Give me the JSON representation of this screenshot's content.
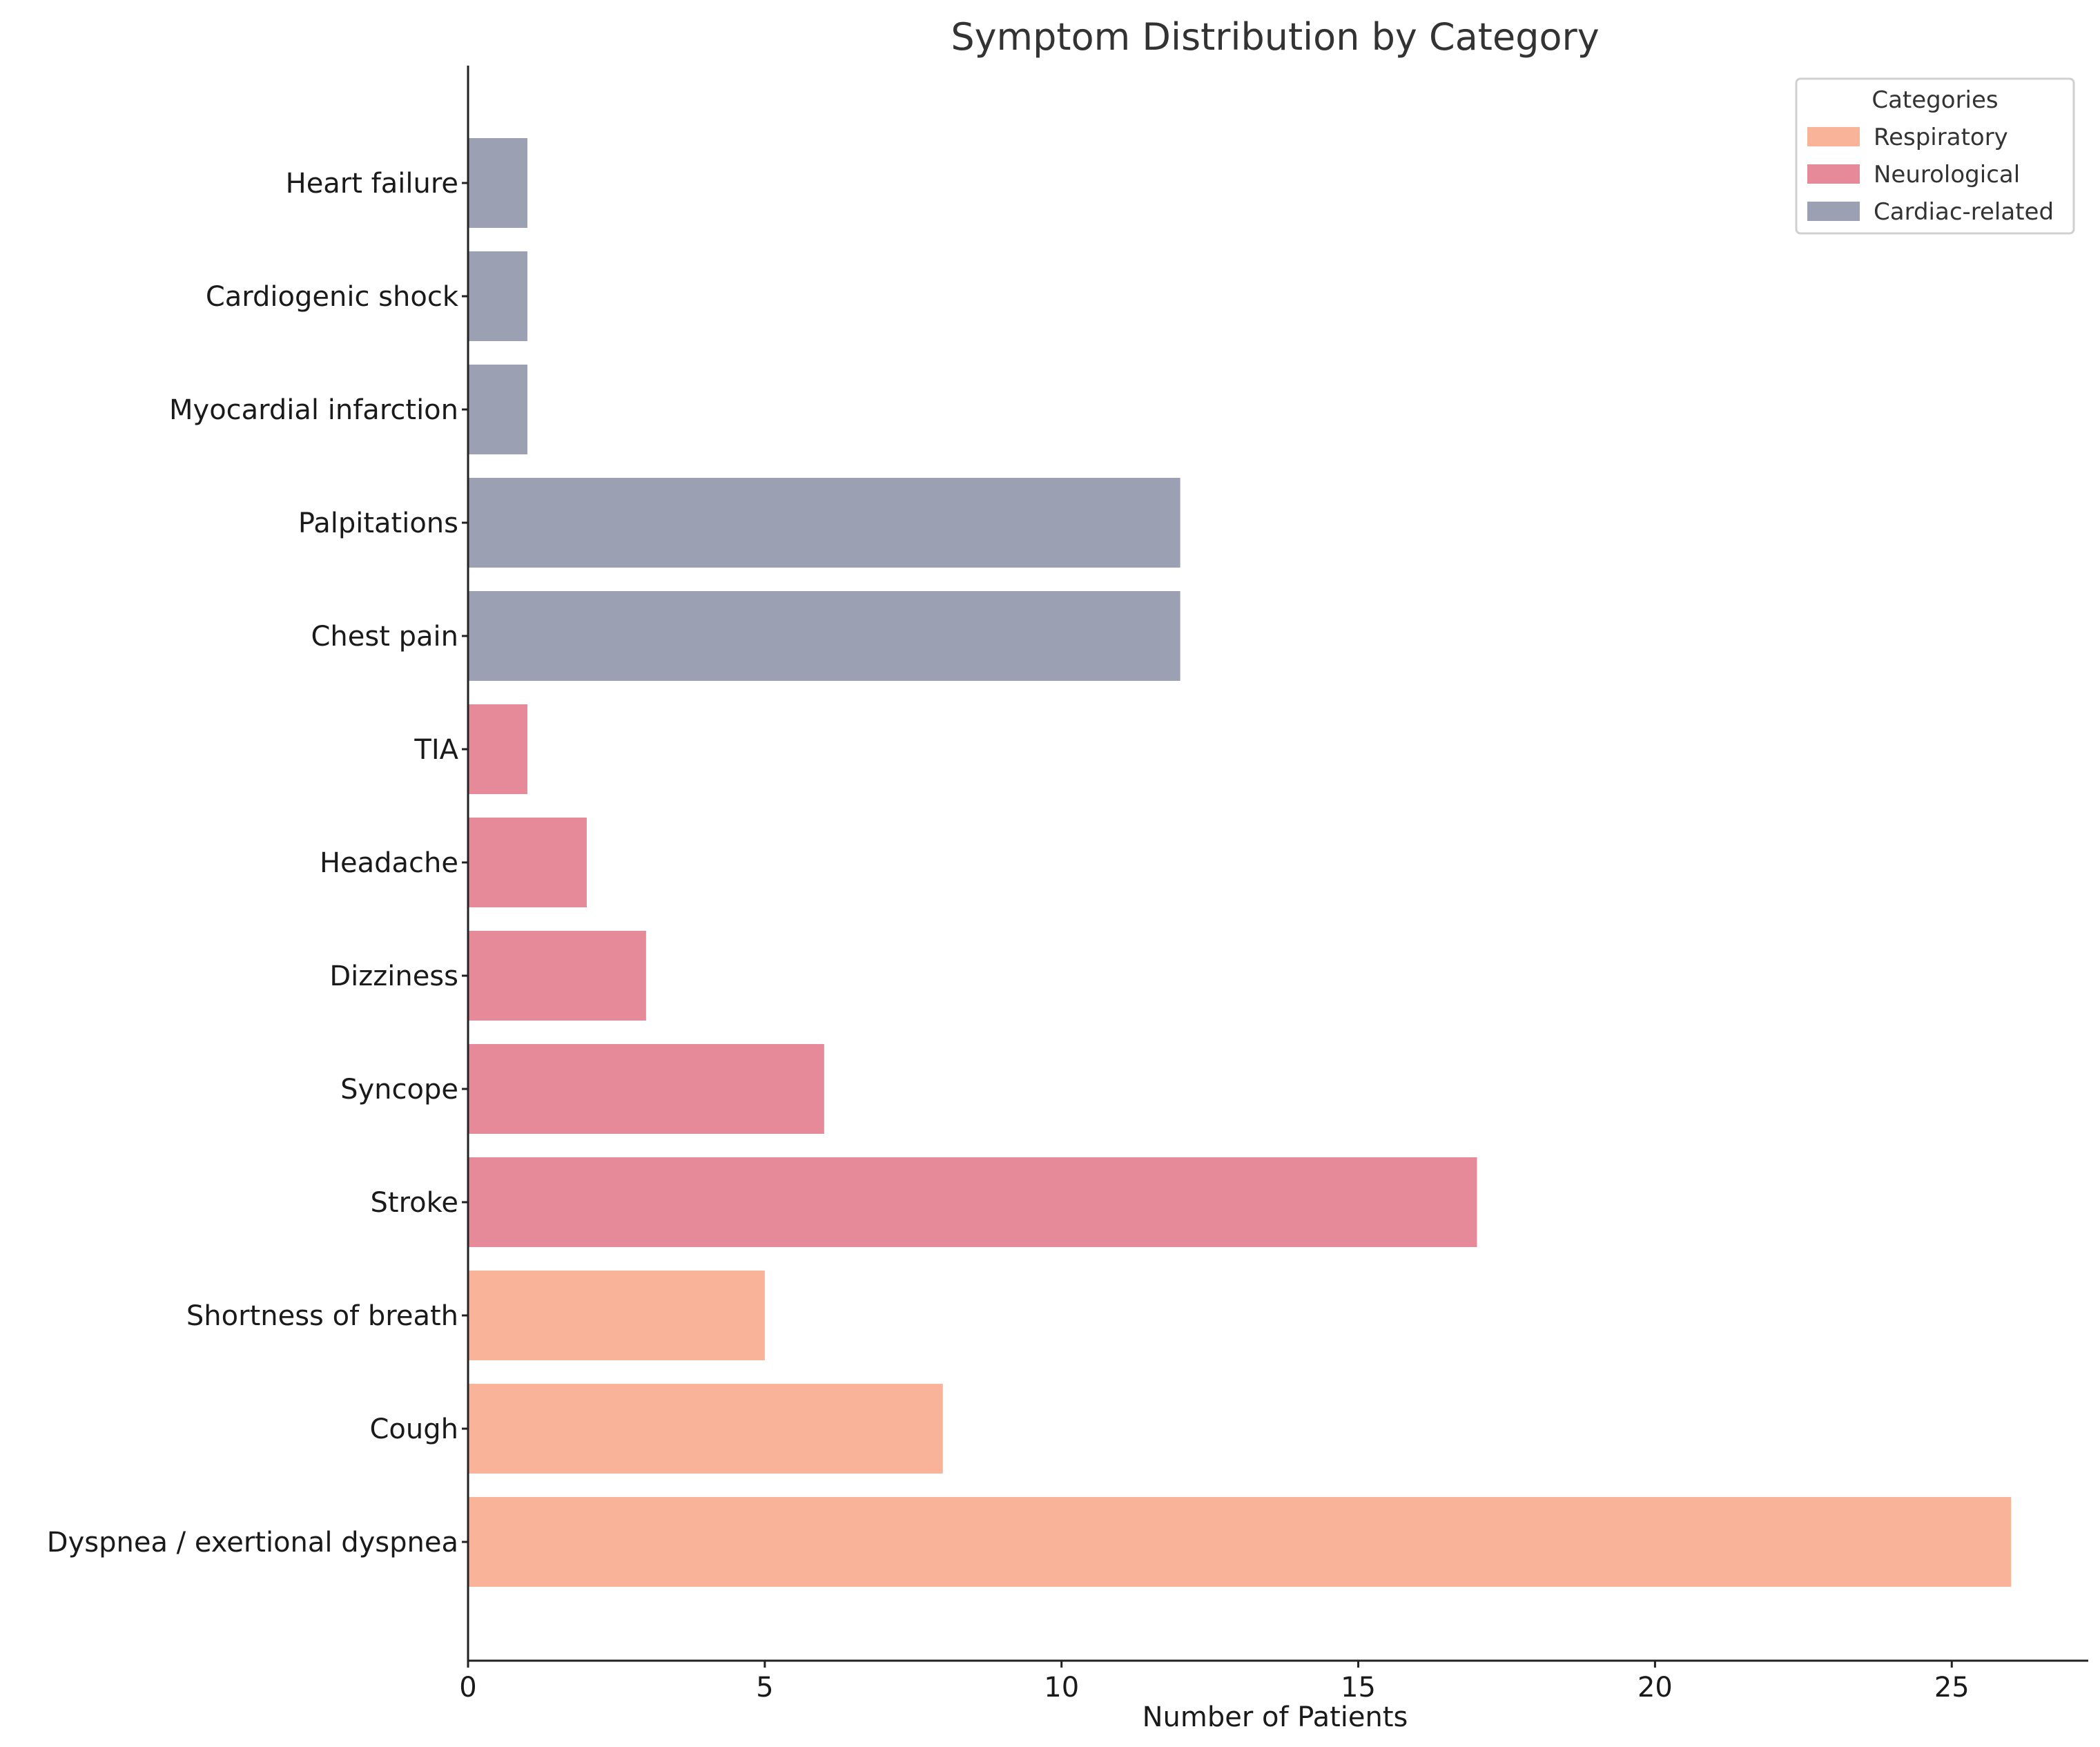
{
  "chart_data": {
    "type": "bar",
    "orientation": "horizontal",
    "title": "Symptom Distribution by Category",
    "xlabel": "Number of Patients",
    "ylabel": "",
    "xlim": [
      0,
      27.3
    ],
    "xticks": [
      0,
      5,
      10,
      15,
      20,
      25
    ],
    "grid": false,
    "legend": {
      "title": "Categories",
      "position": "top-right",
      "entries": [
        {
          "name": "Respiratory",
          "color": "#F8B398"
        },
        {
          "name": "Neurological",
          "color": "#E68A9A"
        },
        {
          "name": "Cardiac-related",
          "color": "#9CA0B3"
        }
      ]
    },
    "categories": [
      "Dyspnea / exertional dyspnea",
      "Cough",
      "Shortness of breath",
      "Stroke",
      "Syncope",
      "Dizziness",
      "Headache",
      "TIA",
      "Chest pain",
      "Palpitations",
      "Myocardial infarction",
      "Cardiogenic shock",
      "Heart failure"
    ],
    "values": [
      26,
      8,
      5,
      17,
      6,
      3,
      2,
      1,
      12,
      12,
      1,
      1,
      1
    ],
    "groups": [
      "Respiratory",
      "Respiratory",
      "Respiratory",
      "Neurological",
      "Neurological",
      "Neurological",
      "Neurological",
      "Neurological",
      "Cardiac-related",
      "Cardiac-related",
      "Cardiac-related",
      "Cardiac-related",
      "Cardiac-related"
    ]
  }
}
